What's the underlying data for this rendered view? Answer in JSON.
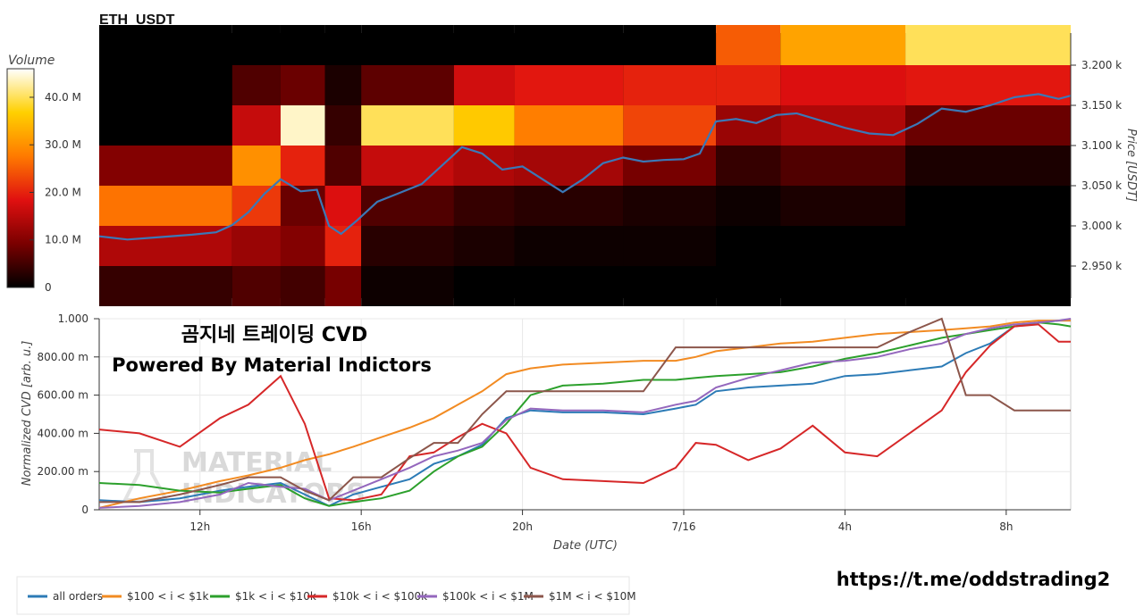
{
  "header": {
    "title": "ETH_USDT"
  },
  "colorbar": {
    "label": "Volume",
    "ticks": [
      "0",
      "10.0 M",
      "20.0 M",
      "30.0 M",
      "40.0 M"
    ],
    "tick_values": [
      0,
      10,
      20,
      30,
      40
    ],
    "max": 46
  },
  "overlay": {
    "title": "곰지네 트레이딩 CVD",
    "subtitle": "Powered By Material Indictors",
    "watermark_line1": "MATERIAL",
    "watermark_line2": "INDICATORS",
    "link": "https://t.me/oddstrading2"
  },
  "chart_data": [
    {
      "type": "heatmap",
      "title": "ETH_USDT",
      "ylabel": "Price [USDT]",
      "ylim": [
        2910,
        3240
      ],
      "x_range_hours": [
        9.5,
        33.6
      ],
      "y_ticks": [
        "2.950 k",
        "3.000 k",
        "3.050 k",
        "3.100 k",
        "3.150 k",
        "3.200 k"
      ],
      "y_tick_values": [
        2950,
        3000,
        3050,
        3100,
        3150,
        3200
      ],
      "price_bands": [
        2925,
        2975,
        3025,
        3075,
        3125,
        3175,
        3225
      ],
      "colorscale": [
        "#000000",
        "#7a0000",
        "#e01010",
        "#ff7a00",
        "#ffd000",
        "#ffffff"
      ],
      "volume_profile": [
        {
          "t_start": 9.5,
          "t_end": 12.8,
          "volumes": [
            4,
            14,
            27,
            10,
            0,
            0,
            0
          ]
        },
        {
          "t_start": 12.8,
          "t_end": 14.0,
          "volumes": [
            6,
            12,
            22,
            30,
            16,
            6,
            0
          ]
        },
        {
          "t_start": 14.0,
          "t_end": 15.1,
          "volumes": [
            5,
            10,
            8,
            20,
            44,
            8,
            0
          ]
        },
        {
          "t_start": 15.1,
          "t_end": 16.0,
          "volumes": [
            9,
            20,
            18,
            6,
            4,
            2,
            0
          ]
        },
        {
          "t_start": 16.0,
          "t_end": 18.3,
          "volumes": [
            1,
            3,
            6,
            16,
            40,
            7,
            0
          ]
        },
        {
          "t_start": 18.3,
          "t_end": 19.8,
          "volumes": [
            0,
            2,
            4,
            14,
            36,
            17,
            0
          ]
        },
        {
          "t_start": 19.8,
          "t_end": 22.5,
          "volumes": [
            0,
            1,
            3,
            13,
            28,
            19,
            0
          ]
        },
        {
          "t_start": 22.5,
          "t_end": 24.8,
          "volumes": [
            0,
            1,
            2,
            9,
            23,
            20,
            0
          ]
        },
        {
          "t_start": 24.8,
          "t_end": 26.4,
          "volumes": [
            0,
            0,
            1,
            4,
            12,
            20,
            25
          ]
        },
        {
          "t_start": 26.4,
          "t_end": 29.5,
          "volumes": [
            0,
            0,
            2,
            6,
            14,
            18,
            32
          ]
        },
        {
          "t_start": 29.5,
          "t_end": 33.6,
          "volumes": [
            0,
            0,
            0,
            2,
            8,
            19,
            40
          ]
        }
      ],
      "price_series": {
        "name": "",
        "x_hours": [
          9.5,
          10.2,
          11.0,
          11.8,
          12.4,
          12.8,
          13.2,
          13.6,
          14.0,
          14.5,
          14.9,
          15.2,
          15.5,
          15.9,
          16.4,
          16.9,
          17.5,
          18.0,
          18.5,
          19.0,
          19.5,
          20.0,
          20.5,
          21.0,
          21.5,
          22.0,
          22.5,
          23.0,
          23.5,
          24.0,
          24.4,
          24.8,
          25.3,
          25.8,
          26.3,
          26.8,
          27.4,
          28.0,
          28.6,
          29.2,
          29.8,
          30.4,
          31.0,
          31.6,
          32.2,
          32.8,
          33.3,
          33.6
        ],
        "price": [
          2987,
          2983,
          2986,
          2989,
          2992,
          3001,
          3017,
          3040,
          3058,
          3043,
          3045,
          3000,
          2990,
          3007,
          3030,
          3040,
          3052,
          3075,
          3098,
          3090,
          3070,
          3074,
          3058,
          3042,
          3058,
          3078,
          3085,
          3080,
          3082,
          3083,
          3090,
          3130,
          3133,
          3128,
          3138,
          3140,
          3131,
          3122,
          3115,
          3113,
          3127,
          3146,
          3142,
          3150,
          3160,
          3164,
          3158,
          3162
        ],
        "color": "#3b78b7"
      }
    },
    {
      "type": "line",
      "xlabel": "Date (UTC)",
      "ylabel": "Normalized CVD [arb. u.]",
      "ylim": [
        0,
        1.0
      ],
      "x_range_hours": [
        9.5,
        33.6
      ],
      "x_ticks": [
        "12h",
        "16h",
        "20h",
        "7/16",
        "4h",
        "8h"
      ],
      "x_tick_values": [
        12,
        16,
        20,
        24,
        28,
        32
      ],
      "y_ticks": [
        "0",
        "200.00 m",
        "400.00 m",
        "600.00 m",
        "800.00 m",
        "1.000"
      ],
      "y_tick_values": [
        0,
        0.2,
        0.4,
        0.6,
        0.8,
        1.0
      ],
      "x_hours": [
        9.5,
        10.5,
        11.5,
        12.5,
        13.2,
        14.0,
        14.6,
        15.2,
        15.8,
        16.5,
        17.2,
        17.8,
        18.4,
        19.0,
        19.6,
        20.2,
        21.0,
        22.0,
        23.0,
        23.8,
        24.3,
        24.8,
        25.6,
        26.4,
        27.2,
        28.0,
        28.8,
        29.6,
        30.4,
        31.0,
        31.6,
        32.2,
        32.8,
        33.3,
        33.6
      ],
      "series": [
        {
          "name": "all orders",
          "color": "#2c7bb6",
          "values": [
            0.05,
            0.04,
            0.06,
            0.1,
            0.12,
            0.14,
            0.08,
            0.02,
            0.08,
            0.12,
            0.16,
            0.24,
            0.28,
            0.34,
            0.48,
            0.52,
            0.51,
            0.51,
            0.5,
            0.53,
            0.55,
            0.62,
            0.64,
            0.65,
            0.66,
            0.7,
            0.71,
            0.73,
            0.75,
            0.82,
            0.87,
            0.96,
            0.98,
            0.99,
            0.99
          ]
        },
        {
          "name": "$100 < i < $1k",
          "color": "#f28b22",
          "values": [
            0.01,
            0.06,
            0.1,
            0.15,
            0.18,
            0.22,
            0.26,
            0.29,
            0.33,
            0.38,
            0.43,
            0.48,
            0.55,
            0.62,
            0.71,
            0.74,
            0.76,
            0.77,
            0.78,
            0.78,
            0.8,
            0.83,
            0.85,
            0.87,
            0.88,
            0.9,
            0.92,
            0.93,
            0.94,
            0.95,
            0.96,
            0.98,
            0.99,
            0.99,
            0.99
          ]
        },
        {
          "name": "$1k < i < $10k",
          "color": "#2ca02c",
          "values": [
            0.14,
            0.13,
            0.1,
            0.09,
            0.11,
            0.13,
            0.06,
            0.02,
            0.04,
            0.06,
            0.1,
            0.2,
            0.28,
            0.33,
            0.45,
            0.6,
            0.65,
            0.66,
            0.68,
            0.68,
            0.69,
            0.7,
            0.71,
            0.72,
            0.75,
            0.79,
            0.82,
            0.86,
            0.9,
            0.92,
            0.94,
            0.96,
            0.98,
            0.97,
            0.96
          ]
        },
        {
          "name": "$10k < i < $100k",
          "color": "#d62728",
          "values": [
            0.42,
            0.4,
            0.33,
            0.48,
            0.55,
            0.7,
            0.45,
            0.06,
            0.05,
            0.08,
            0.28,
            0.3,
            0.38,
            0.45,
            0.4,
            0.22,
            0.16,
            0.15,
            0.14,
            0.22,
            0.35,
            0.34,
            0.26,
            0.32,
            0.44,
            0.3,
            0.28,
            0.4,
            0.52,
            0.72,
            0.86,
            0.96,
            0.97,
            0.88,
            0.88
          ]
        },
        {
          "name": "$100k < i < $1M",
          "color": "#9467bd",
          "values": [
            0.01,
            0.02,
            0.04,
            0.08,
            0.14,
            0.12,
            0.11,
            0.05,
            0.1,
            0.16,
            0.22,
            0.28,
            0.31,
            0.35,
            0.47,
            0.53,
            0.52,
            0.52,
            0.51,
            0.55,
            0.57,
            0.64,
            0.69,
            0.73,
            0.77,
            0.78,
            0.8,
            0.84,
            0.87,
            0.92,
            0.95,
            0.97,
            0.98,
            0.99,
            1.0
          ]
        },
        {
          "name": "$1M < i < $10M",
          "color": "#8c564b",
          "values": [
            0.04,
            0.04,
            0.08,
            0.13,
            0.17,
            0.17,
            0.1,
            0.05,
            0.17,
            0.17,
            0.27,
            0.35,
            0.35,
            0.5,
            0.62,
            0.62,
            0.62,
            0.62,
            0.62,
            0.85,
            0.85,
            0.85,
            0.85,
            0.85,
            0.85,
            0.85,
            0.85,
            0.93,
            1.0,
            0.6,
            0.6,
            0.52,
            0.52,
            0.52,
            0.52
          ]
        }
      ]
    }
  ]
}
